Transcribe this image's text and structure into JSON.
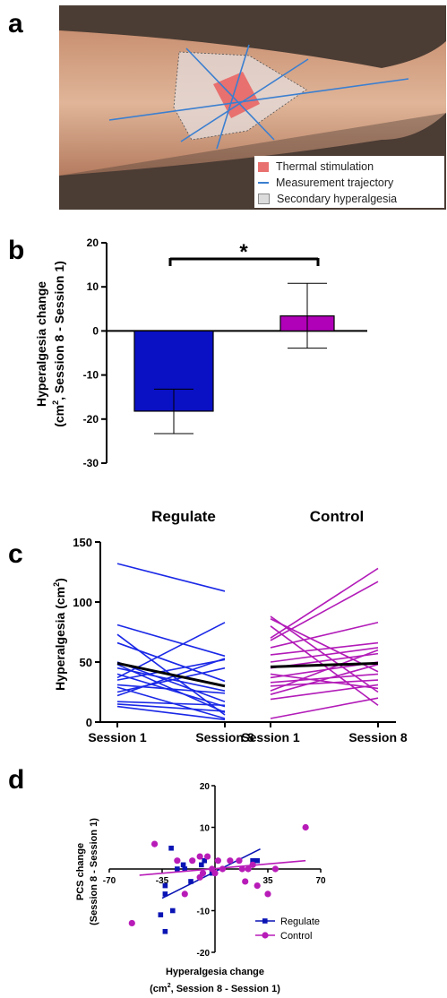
{
  "panels": {
    "a": {
      "letter": "a",
      "legend": [
        {
          "label": "Thermal stimulation",
          "color": "#e8706e"
        },
        {
          "label": "Measurement trajectory",
          "color": "#3b7fd0"
        },
        {
          "label": "Secondary hyperalgesia",
          "color": "#dcdcdc"
        }
      ]
    },
    "b": {
      "letter": "b",
      "significance": "*"
    },
    "c": {
      "letter": "c",
      "group_labels": [
        "Regulate",
        "Control"
      ]
    },
    "d": {
      "letter": "d"
    }
  },
  "chart_data": [
    {
      "type": "bar",
      "panel": "b",
      "ylabel_line1": "Hyperalgesia change",
      "ylabel_line2_prefix": "(cm",
      "ylabel_line2_sup": "2",
      "ylabel_line2_suffix": ", Session 8 - Session 1)",
      "ylim": [
        -30,
        20
      ],
      "yticks": [
        20,
        10,
        0,
        -10,
        -20,
        -30
      ],
      "yticklabels": [
        "20",
        "10",
        "0",
        "-10",
        "-20",
        "-30"
      ],
      "bars": [
        {
          "value": -18.2,
          "err_low": -23.3,
          "err_high": -13.2,
          "color": "#0a10c4"
        },
        {
          "value": 3.4,
          "err_low": -3.9,
          "err_high": 10.8,
          "color": "#b000b8"
        }
      ]
    },
    {
      "type": "line",
      "panel": "c",
      "ylabel_prefix": "Hyperalgesia (cm",
      "ylabel_sup": "2",
      "ylabel_suffix": ")",
      "ylim": [
        0,
        150
      ],
      "yticks": [
        0,
        50,
        100,
        150
      ],
      "yticklabels": [
        "0",
        "50",
        "100",
        "150"
      ],
      "categories": [
        "Session 1",
        "Session 8",
        "Session 1",
        "Session 8"
      ],
      "series": [
        {
          "group": "Regulate",
          "color": "#1a28e6",
          "mean": [
            49,
            30
          ],
          "subjects": [
            [
              132,
              109
            ],
            [
              81,
              55
            ],
            [
              73,
              6
            ],
            [
              66,
              34
            ],
            [
              50,
              17
            ],
            [
              48,
              8
            ],
            [
              45,
              26
            ],
            [
              40,
              13
            ],
            [
              37,
              83
            ],
            [
              35,
              52
            ],
            [
              31,
              24
            ],
            [
              29,
              3
            ],
            [
              25,
              45
            ],
            [
              22,
              53
            ],
            [
              17,
              14
            ],
            [
              15,
              9
            ],
            [
              13,
              2
            ]
          ]
        },
        {
          "group": "Control",
          "color": "#b21bb8",
          "mean": [
            46,
            49
          ],
          "subjects": [
            [
              88,
              25
            ],
            [
              86,
              42
            ],
            [
              80,
              14
            ],
            [
              70,
              128
            ],
            [
              68,
              117
            ],
            [
              62,
              83
            ],
            [
              56,
              66
            ],
            [
              50,
              62
            ],
            [
              45,
              57
            ],
            [
              40,
              28
            ],
            [
              37,
              50
            ],
            [
              33,
              40
            ],
            [
              30,
              35
            ],
            [
              26,
              60
            ],
            [
              23,
              48
            ],
            [
              19,
              31
            ],
            [
              3,
              20
            ]
          ]
        }
      ]
    },
    {
      "type": "scatter",
      "panel": "d",
      "ylabel_line1": "PCS change",
      "ylabel_line2": "(Session 8 - Session 1)",
      "xlabel_line1": "Hyperalgesia change",
      "xlabel_line2_prefix": "(cm",
      "xlabel_line2_sup": "2",
      "xlabel_line2_suffix": ",  Session 8 -  Session 1)",
      "xlim": [
        -70,
        70
      ],
      "ylim": [
        -20,
        20
      ],
      "xticks": [
        -70,
        -35,
        35,
        70
      ],
      "xticklabels": [
        "-70",
        "-35",
        "35",
        "70"
      ],
      "yticks": [
        20,
        10,
        -10,
        -20
      ],
      "yticklabels": [
        "20",
        "10",
        "-10",
        "-20"
      ],
      "series": [
        {
          "name": "Regulate",
          "color": "#0a14b4",
          "marker": "square",
          "points": [
            [
              -29,
              5
            ],
            [
              -25,
              0
            ],
            [
              -20,
              0
            ],
            [
              -21,
              1
            ],
            [
              -33,
              -4
            ],
            [
              -33,
              -6
            ],
            [
              -28,
              -10
            ],
            [
              -36,
              -11
            ],
            [
              -33,
              -15
            ],
            [
              -16,
              -3
            ],
            [
              -9,
              1
            ],
            [
              -7,
              2
            ],
            [
              -2,
              -1
            ],
            [
              25,
              2
            ],
            [
              28,
              2
            ]
          ],
          "fit": [
            [
              -35,
              -7
            ],
            [
              30,
              4.8
            ]
          ]
        },
        {
          "name": "Control",
          "color": "#b81cb8",
          "marker": "circle",
          "points": [
            [
              -40,
              6
            ],
            [
              -20,
              -6
            ],
            [
              -25,
              2
            ],
            [
              -10,
              3
            ],
            [
              -10,
              -2
            ],
            [
              -5,
              3
            ],
            [
              -2,
              0
            ],
            [
              2,
              2
            ],
            [
              5,
              0
            ],
            [
              10,
              2
            ],
            [
              16,
              2
            ],
            [
              18,
              0
            ],
            [
              20,
              -3
            ],
            [
              22,
              0
            ],
            [
              25,
              1
            ],
            [
              35,
              -6
            ],
            [
              40,
              0
            ],
            [
              60,
              10
            ],
            [
              -55,
              -13
            ],
            [
              -15,
              2
            ],
            [
              -8,
              -1
            ],
            [
              0,
              -1
            ],
            [
              28,
              -4
            ]
          ],
          "fit": [
            [
              -50,
              -1.5
            ],
            [
              60,
              2
            ]
          ]
        }
      ]
    }
  ]
}
